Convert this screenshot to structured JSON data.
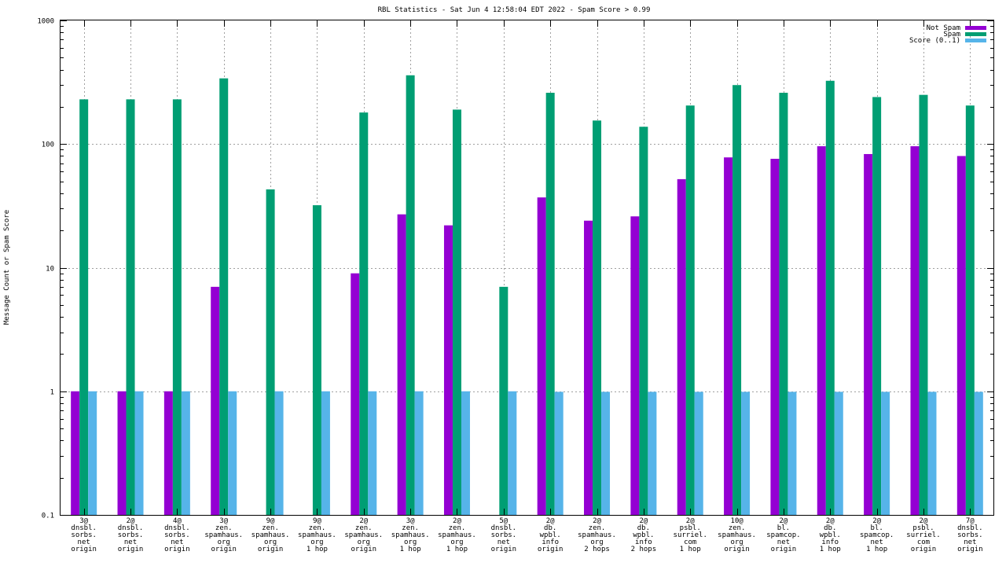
{
  "chart_data": {
    "type": "bar",
    "title": "RBL Statistics - Sat Jun  4 12:58:04 EDT 2022 - Spam Score > 0.99",
    "xlabel": "",
    "ylabel": "Message Count or Spam Score",
    "yscale": "log",
    "ylim": [
      0.1,
      1000
    ],
    "yticks": [
      0.1,
      1,
      10,
      100,
      1000
    ],
    "ytick_labels": [
      "0.1",
      "1",
      "10",
      "100",
      "1000"
    ],
    "grid": true,
    "legend_position": "top-right",
    "categories": [
      [
        "3@",
        "dnsbl.",
        "sorbs.",
        "net",
        "origin"
      ],
      [
        "2@",
        "dnsbl.",
        "sorbs.",
        "net",
        "origin"
      ],
      [
        "4@",
        "dnsbl.",
        "sorbs.",
        "net",
        "origin"
      ],
      [
        "3@",
        "zen.",
        "spamhaus.",
        "org",
        "origin"
      ],
      [
        "9@",
        "zen.",
        "spamhaus.",
        "org",
        "origin"
      ],
      [
        "9@",
        "zen.",
        "spamhaus.",
        "org",
        "1 hop"
      ],
      [
        "2@",
        "zen.",
        "spamhaus.",
        "org",
        "origin"
      ],
      [
        "3@",
        "zen.",
        "spamhaus.",
        "org",
        "1 hop"
      ],
      [
        "2@",
        "zen.",
        "spamhaus.",
        "org",
        "1 hop"
      ],
      [
        "5@",
        "dnsbl.",
        "sorbs.",
        "net",
        "origin"
      ],
      [
        "2@",
        "db.",
        "wpbl.",
        "info",
        "origin"
      ],
      [
        "2@",
        "zen.",
        "spamhaus.",
        "org",
        "2 hops"
      ],
      [
        "2@",
        "db.",
        "wpbl.",
        "info",
        "2 hops"
      ],
      [
        "2@",
        "psbl.",
        "surriel.",
        "com",
        "1 hop"
      ],
      [
        "10@",
        "zen.",
        "spamhaus.",
        "org",
        "origin"
      ],
      [
        "2@",
        "bl.",
        "spamcop.",
        "net",
        "origin"
      ],
      [
        "2@",
        "db.",
        "wpbl.",
        "info",
        "1 hop"
      ],
      [
        "2@",
        "bl.",
        "spamcop.",
        "net",
        "1 hop"
      ],
      [
        "2@",
        "psbl.",
        "surriel.",
        "com",
        "origin"
      ],
      [
        "7@",
        "dnsbl.",
        "sorbs.",
        "net",
        "origin"
      ]
    ],
    "series": [
      {
        "name": "Not Spam",
        "color": "#9400d3",
        "values": [
          1,
          1,
          1,
          7,
          null,
          null,
          9,
          27,
          22,
          null,
          37,
          24,
          26,
          52,
          78,
          76,
          96,
          83,
          96,
          80
        ]
      },
      {
        "name": "Spam",
        "color": "#009e73",
        "values": [
          230,
          230,
          230,
          340,
          43,
          32,
          180,
          360,
          190,
          7,
          260,
          155,
          138,
          205,
          300,
          260,
          325,
          240,
          250,
          205
        ]
      },
      {
        "name": "Score (0..1)",
        "color": "#56b4e9",
        "values": [
          1,
          1,
          1,
          1,
          1,
          1,
          1,
          1,
          1,
          1,
          0.99,
          0.99,
          0.99,
          0.99,
          0.99,
          0.99,
          0.99,
          0.99,
          0.99,
          0.99
        ]
      }
    ]
  }
}
